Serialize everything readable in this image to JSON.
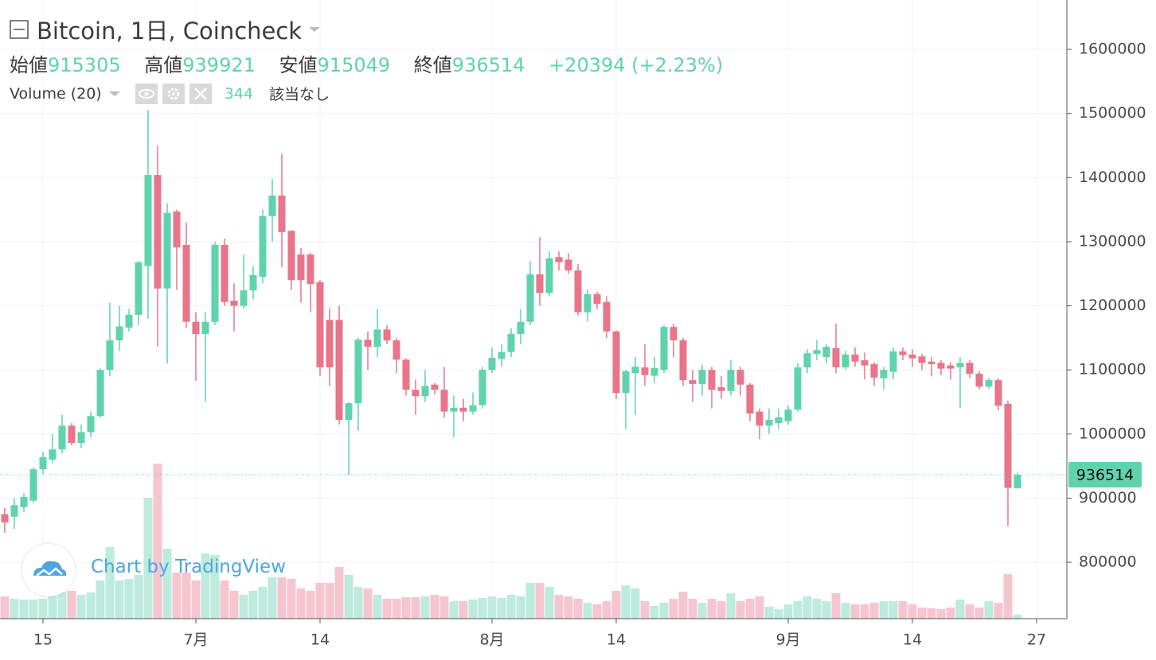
{
  "chart_data": {
    "type": "candlestick",
    "title": "Bitcoin, 1日, Coincheck",
    "open_label": "始値",
    "high_label": "高値",
    "low_label": "安値",
    "close_label": "終値",
    "change": "+20394 (+2.23%)",
    "volume_title": "Volume (20)",
    "volume_status": "該当なし",
    "watermark": "Chart by TradingView",
    "categories": [
      null,
      null,
      null,
      null,
      "15",
      null,
      null,
      null,
      null,
      null,
      null,
      null,
      null,
      null,
      null,
      null,
      null,
      null,
      null,
      null,
      "7月",
      null,
      null,
      null,
      null,
      null,
      null,
      null,
      null,
      null,
      null,
      null,
      null,
      "14",
      null,
      null,
      null,
      null,
      null,
      null,
      null,
      null,
      null,
      null,
      null,
      null,
      null,
      null,
      null,
      null,
      null,
      "8月",
      null,
      null,
      null,
      null,
      null,
      null,
      null,
      null,
      null,
      null,
      null,
      null,
      "14",
      null,
      null,
      null,
      null,
      null,
      null,
      null,
      null,
      null,
      null,
      null,
      null,
      null,
      null,
      null,
      null,
      null,
      "9月",
      null,
      null,
      null,
      null,
      null,
      null,
      null,
      null,
      null,
      null,
      null,
      null,
      "14",
      null,
      null,
      null,
      null,
      null,
      null,
      null,
      null,
      null,
      null,
      null,
      null,
      "27"
    ],
    "ohlc": {
      "up_color": "#5fd3ad",
      "down_color": "#e8758a",
      "open": [
        875000,
        871000,
        886000,
        896000,
        945000,
        960000,
        976000,
        1013000,
        986000,
        1003000,
        1028000,
        1100000,
        1146000,
        1166000,
        1186000,
        1262000,
        1404000,
        1227000,
        1347000,
        1295000,
        1175000,
        1156000,
        1175000,
        1295000,
        1208000,
        1200000,
        1224000,
        1245000,
        1340000,
        1372000,
        1317000,
        1280000,
        1280000,
        1237000,
        1178000,
        1178000,
        1022000,
        1048000,
        1147000,
        1136000,
        1163000,
        1146000,
        1116000,
        1069000,
        1059000,
        1077000,
        1069000,
        1035000,
        1041000,
        1035000,
        1045000,
        1100000,
        1117000,
        1128000,
        1156000,
        1175000,
        1249000,
        1220000,
        1276000,
        1272000,
        1255000,
        1190000,
        1218000,
        1206000,
        1160000,
        1064000,
        1095000,
        1104000,
        1091000,
        1100000,
        1167000,
        1146000,
        1084000,
        1078000,
        1100000,
        1073000,
        1067000,
        1100000,
        1077000,
        1035000,
        1013000,
        1017000,
        1020000,
        1038000,
        1104000,
        1125000,
        1120000,
        1134000,
        1104000,
        1124000,
        1115000,
        1109000,
        1087000,
        1097000,
        1129000,
        1124000,
        1121000,
        1113000,
        1111000,
        1107000,
        1104000,
        1111000,
        1094000,
        1074000,
        1084000,
        1047000,
        915305,
        null,
        null
      ],
      "high": [
        885000,
        900000,
        908000,
        948000,
        972000,
        1000000,
        1030000,
        1017000,
        1015000,
        1035000,
        1102000,
        1205000,
        1200000,
        1195000,
        1270000,
        1505000,
        1450000,
        1360000,
        1350000,
        1330000,
        1190000,
        1190000,
        1300000,
        1305000,
        1235000,
        1280000,
        1262000,
        1350000,
        1398000,
        1437000,
        1318000,
        1290000,
        1283000,
        1240000,
        1196000,
        1200000,
        1050000,
        1150000,
        1160000,
        1195000,
        1170000,
        1150000,
        1118000,
        1085000,
        1100000,
        1080000,
        1105000,
        1060000,
        1055000,
        1065000,
        1105000,
        1135000,
        1140000,
        1165000,
        1195000,
        1270000,
        1307000,
        1285000,
        1285000,
        1282000,
        1265000,
        1225000,
        1222000,
        1215000,
        1162000,
        1100000,
        1120000,
        1140000,
        1120000,
        1170000,
        1172000,
        1150000,
        1100000,
        1108000,
        1105000,
        1090000,
        1115000,
        1105000,
        1080000,
        1040000,
        1040000,
        1040000,
        1045000,
        1110000,
        1132000,
        1147000,
        1140000,
        1172000,
        1130000,
        1135000,
        1127000,
        1112000,
        1105000,
        1135000,
        1135000,
        1132000,
        1125000,
        1120000,
        1115000,
        1112000,
        1120000,
        1115000,
        1098000,
        1088000,
        1087000,
        1052000,
        939921,
        null,
        null
      ],
      "low": [
        846000,
        852000,
        878000,
        892000,
        938000,
        955000,
        970000,
        982000,
        978000,
        995000,
        1025000,
        1090000,
        1130000,
        1160000,
        1170000,
        1180000,
        1137000,
        1110000,
        1225000,
        1165000,
        1083000,
        1050000,
        1170000,
        1200000,
        1160000,
        1195000,
        1210000,
        1235000,
        1300000,
        1260000,
        1225000,
        1205000,
        1190000,
        1090000,
        1075000,
        1015000,
        935000,
        1005000,
        1100000,
        1120000,
        1140000,
        1095000,
        1060000,
        1030000,
        1050000,
        1062000,
        1025000,
        995000,
        1020000,
        1030000,
        1040000,
        1095000,
        1105000,
        1120000,
        1140000,
        1170000,
        1200000,
        1215000,
        1255000,
        1250000,
        1185000,
        1175000,
        1195000,
        1150000,
        1055000,
        1008000,
        1030000,
        1075000,
        1080000,
        1095000,
        1120000,
        1075000,
        1050000,
        1060000,
        1040000,
        1055000,
        1060000,
        1060000,
        1020000,
        992000,
        1000000,
        1008000,
        1015000,
        1035000,
        1095000,
        1115000,
        1110000,
        1095000,
        1100000,
        1105000,
        1085000,
        1075000,
        1070000,
        1085000,
        1115000,
        1105000,
        1100000,
        1090000,
        1092000,
        1085000,
        1041000,
        1087000,
        1070000,
        1070000,
        1037000,
        856000,
        915049,
        null,
        null
      ],
      "close": [
        862000,
        889000,
        902000,
        945000,
        964000,
        976000,
        1013000,
        986000,
        1003000,
        1028000,
        1100000,
        1146000,
        1168000,
        1186000,
        1268000,
        1404000,
        1227000,
        1345000,
        1291000,
        1175000,
        1156000,
        1175000,
        1295000,
        1206000,
        1200000,
        1224000,
        1248000,
        1340000,
        1372000,
        1315000,
        1240000,
        1240000,
        1234000,
        1104000,
        1104000,
        1022000,
        1048000,
        1147000,
        1136000,
        1163000,
        1146000,
        1116000,
        1069000,
        1059000,
        1075000,
        1069000,
        1035000,
        1041000,
        1035000,
        1045000,
        1100000,
        1119000,
        1128000,
        1156000,
        1175000,
        1249000,
        1220000,
        1274000,
        1268000,
        1255000,
        1190000,
        1218000,
        1203000,
        1160000,
        1064000,
        1098000,
        1105000,
        1092000,
        1103000,
        1167000,
        1146000,
        1084000,
        1078000,
        1100000,
        1069000,
        1067000,
        1100000,
        1077000,
        1032000,
        1013000,
        1022000,
        1026000,
        1038000,
        1104000,
        1126000,
        1131000,
        1136000,
        1104000,
        1124000,
        1113000,
        1107000,
        1088000,
        1100000,
        1129000,
        1123000,
        1118000,
        1111000,
        1109000,
        1102000,
        1102000,
        1111000,
        1094000,
        1074000,
        1084000,
        1044000,
        916000,
        936514,
        null,
        null
      ]
    },
    "volume": {
      "up_color": "#bdebdd",
      "down_color": "#f6c6d0",
      "values": [
        1960,
        1750,
        1680,
        1680,
        1750,
        2100,
        2310,
        2450,
        2100,
        2310,
        3360,
        6300,
        3360,
        3500,
        3850,
        10640,
        13650,
        6160,
        4060,
        4060,
        3360,
        5740,
        5600,
        3360,
        2450,
        2100,
        2450,
        2800,
        3640,
        3640,
        3500,
        2660,
        2450,
        3150,
        3150,
        4550,
        3850,
        2800,
        2660,
        2100,
        1750,
        1750,
        1890,
        1890,
        1960,
        2100,
        1960,
        1540,
        1540,
        1680,
        1820,
        1960,
        1820,
        2100,
        1960,
        3150,
        3150,
        2800,
        2100,
        1960,
        1750,
        1400,
        1260,
        1540,
        2450,
        2940,
        2660,
        1540,
        1120,
        1400,
        1750,
        2380,
        1750,
        1400,
        1750,
        1540,
        2240,
        1540,
        1750,
        1960,
        1050,
        840,
        1260,
        1540,
        1960,
        1750,
        1540,
        2240,
        1400,
        1260,
        1260,
        1400,
        1540,
        1540,
        1540,
        1260,
        980,
        910,
        840,
        980,
        1680,
        1260,
        980,
        1540,
        1400,
        3920,
        344,
        null,
        null
      ]
    },
    "ylim": [
      712000,
      1677000
    ],
    "yticks": [
      800000,
      900000,
      1000000,
      1100000,
      1200000,
      1300000,
      1400000,
      1500000,
      1600000
    ],
    "grid": true
  }
}
